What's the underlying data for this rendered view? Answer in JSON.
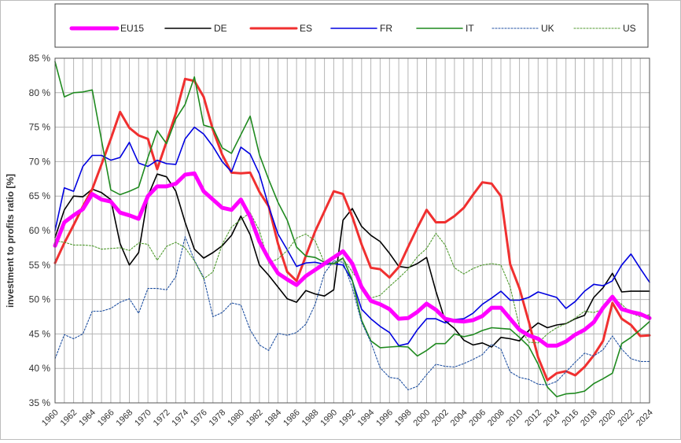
{
  "chart_data": {
    "type": "line",
    "title": "",
    "xlabel": "",
    "ylabel": "investment to profits ratio  [%]",
    "xlim": [
      1960,
      2024
    ],
    "ylim": [
      35,
      85
    ],
    "grid": true,
    "legend_position": "top",
    "x_ticks": [
      "1960",
      "1962",
      "1964",
      "1966",
      "1968",
      "1970",
      "1972",
      "1974",
      "1976",
      "1978",
      "1980",
      "1982",
      "1984",
      "1986",
      "1988",
      "1990",
      "1992",
      "1994",
      "1996",
      "1998",
      "2000",
      "2002",
      "2004",
      "2006",
      "2008",
      "2010",
      "2012",
      "2014",
      "2016",
      "2018",
      "2020",
      "2022",
      "2024"
    ],
    "y_ticks": [
      "35 %",
      "40 %",
      "45 %",
      "50 %",
      "55 %",
      "60 %",
      "65 %",
      "70 %",
      "75 %",
      "80 %",
      "85 %"
    ],
    "x": [
      1960,
      1961,
      1962,
      1963,
      1964,
      1965,
      1966,
      1967,
      1968,
      1969,
      1970,
      1971,
      1972,
      1973,
      1974,
      1975,
      1976,
      1977,
      1978,
      1979,
      1980,
      1981,
      1982,
      1983,
      1984,
      1985,
      1986,
      1987,
      1988,
      1989,
      1990,
      1991,
      1992,
      1993,
      1994,
      1995,
      1996,
      1997,
      1998,
      1999,
      2000,
      2001,
      2002,
      2003,
      2004,
      2005,
      2006,
      2007,
      2008,
      2009,
      2010,
      2011,
      2012,
      2013,
      2014,
      2015,
      2016,
      2017,
      2018,
      2019,
      2020,
      2021,
      2022,
      2023,
      2024
    ],
    "series": [
      {
        "name": "EU15",
        "color": "#ff00ff",
        "style": "solid",
        "width": 5,
        "values": [
          57.8,
          61.2,
          62.2,
          63.1,
          65.3,
          64.5,
          64.2,
          62.6,
          62.2,
          61.7,
          65.0,
          66.4,
          66.4,
          66.8,
          68.1,
          68.3,
          65.7,
          64.5,
          63.3,
          63.0,
          64.5,
          62.0,
          58.4,
          55.9,
          53.8,
          52.9,
          52.1,
          53.4,
          54.3,
          55.2,
          56.1,
          57.0,
          55.2,
          51.8,
          49.8,
          49.3,
          48.6,
          47.2,
          47.3,
          48.2,
          49.4,
          48.5,
          47.2,
          46.9,
          46.8,
          47.0,
          47.6,
          48.8,
          48.8,
          47.2,
          45.6,
          44.8,
          44.3,
          43.3,
          43.3,
          43.9,
          44.9,
          45.6,
          46.7,
          48.8,
          50.4,
          48.6,
          48.2,
          47.9,
          47.3
        ]
      },
      {
        "name": "DE",
        "color": "#000000",
        "style": "solid",
        "width": 1.6,
        "values": [
          59.0,
          63.0,
          65.0,
          64.9,
          66.0,
          65.5,
          64.5,
          58.1,
          55.0,
          56.8,
          65.0,
          68.2,
          67.8,
          65.7,
          61.2,
          57.3,
          56.0,
          56.8,
          57.8,
          59.3,
          62.1,
          59.4,
          55.0,
          53.5,
          51.8,
          50.1,
          49.6,
          51.3,
          50.8,
          50.5,
          51.4,
          61.5,
          63.2,
          60.6,
          59.3,
          58.4,
          56.7,
          54.8,
          54.6,
          55.2,
          56.1,
          51.2,
          46.9,
          45.8,
          44.1,
          43.4,
          43.7,
          43.1,
          44.5,
          44.3,
          44.0,
          45.5,
          46.6,
          45.9,
          46.3,
          46.5,
          47.2,
          47.7,
          50.3,
          51.7,
          53.8,
          51.1,
          51.2,
          51.2,
          51.2
        ]
      },
      {
        "name": "ES",
        "color": "#f03030",
        "style": "solid",
        "width": 3,
        "values": [
          55.3,
          58.2,
          60.8,
          63.5,
          66.0,
          69.6,
          73.3,
          77.2,
          74.9,
          73.8,
          73.3,
          68.9,
          72.9,
          77.0,
          82.0,
          81.7,
          79.4,
          74.6,
          71.0,
          68.4,
          68.3,
          68.4,
          65.6,
          63.5,
          58.1,
          54.0,
          52.7,
          56.3,
          59.9,
          62.8,
          65.7,
          65.3,
          62.0,
          58.0,
          54.6,
          54.4,
          53.2,
          54.7,
          57.6,
          60.4,
          63.0,
          61.2,
          61.2,
          62.1,
          63.3,
          65.2,
          67.0,
          66.8,
          65.0,
          55.1,
          51.6,
          46.8,
          41.6,
          38.3,
          39.3,
          39.6,
          39.0,
          40.2,
          41.9,
          44.0,
          49.5,
          47.2,
          46.3,
          44.7,
          44.8
        ]
      },
      {
        "name": "FR",
        "color": "#0000e0",
        "style": "solid",
        "width": 1.6,
        "values": [
          60.0,
          66.2,
          65.7,
          69.3,
          70.9,
          70.9,
          70.2,
          70.6,
          72.8,
          69.8,
          69.3,
          70.2,
          69.7,
          69.6,
          73.3,
          75.0,
          74.0,
          72.2,
          70.0,
          68.5,
          72.1,
          71.1,
          68.2,
          63.5,
          59.5,
          57.2,
          54.8,
          55.3,
          55.4,
          55.1,
          55.2,
          55.0,
          52.7,
          48.6,
          47.2,
          46.1,
          45.2,
          43.3,
          43.6,
          45.6,
          47.2,
          47.2,
          46.6,
          47.1,
          47.2,
          48.0,
          49.3,
          50.2,
          51.2,
          49.9,
          49.9,
          50.3,
          51.1,
          50.7,
          50.3,
          48.7,
          49.7,
          51.2,
          52.2,
          52.0,
          52.7,
          55.0,
          56.6,
          54.5,
          52.5
        ]
      },
      {
        "name": "IT",
        "color": "#1f8a1f",
        "style": "solid",
        "width": 1.6,
        "values": [
          84.5,
          79.4,
          80.0,
          80.1,
          80.4,
          73.1,
          65.9,
          65.2,
          65.7,
          66.3,
          70.6,
          74.5,
          72.6,
          76.2,
          78.3,
          82.3,
          75.3,
          74.9,
          72.0,
          71.2,
          73.9,
          76.6,
          71.0,
          67.4,
          64.1,
          61.5,
          57.6,
          56.3,
          56.1,
          55.4,
          55.2,
          56.0,
          52.8,
          47.0,
          44.0,
          43.0,
          43.1,
          43.2,
          43.1,
          41.8,
          42.6,
          43.6,
          43.6,
          45.0,
          44.6,
          44.9,
          45.5,
          45.9,
          45.8,
          45.7,
          44.5,
          43.2,
          40.6,
          37.3,
          35.9,
          36.3,
          36.4,
          36.7,
          37.8,
          38.5,
          39.3,
          43.6,
          44.5,
          45.6,
          46.8
        ]
      },
      {
        "name": "UK",
        "color": "#1e4fa0",
        "style": "dotted",
        "width": 1.1,
        "values": [
          41.4,
          44.9,
          44.3,
          45.0,
          48.3,
          48.3,
          48.7,
          49.6,
          50.1,
          48.0,
          51.6,
          51.6,
          51.4,
          53.3,
          59.1,
          55.7,
          53.2,
          47.5,
          48.1,
          49.5,
          49.2,
          45.6,
          43.4,
          42.6,
          45.1,
          44.8,
          45.2,
          46.4,
          49.3,
          53.8,
          55.6,
          55.4,
          51.7,
          46.7,
          43.8,
          40.1,
          38.7,
          38.5,
          36.9,
          37.4,
          39.1,
          40.6,
          40.3,
          40.2,
          40.7,
          41.3,
          42.0,
          43.5,
          42.8,
          39.5,
          38.7,
          38.4,
          37.7,
          37.6,
          38.1,
          39.5,
          40.9,
          42.2,
          41.8,
          42.7,
          44.7,
          42.8,
          41.4,
          41.0,
          41.0
        ]
      },
      {
        "name": "US",
        "color": "#4f9a2e",
        "style": "dotted",
        "width": 1.1,
        "values": [
          58.5,
          58.3,
          57.9,
          57.9,
          57.8,
          57.3,
          57.4,
          57.5,
          57.1,
          58.2,
          58.0,
          55.7,
          57.7,
          58.3,
          57.5,
          55.6,
          53.0,
          54.0,
          58.0,
          60.5,
          61.6,
          62.6,
          60.0,
          55.3,
          55.9,
          57.1,
          58.9,
          59.5,
          58.5,
          55.3,
          55.1,
          55.9,
          54.0,
          52.2,
          50.2,
          50.6,
          51.9,
          53.1,
          54.4,
          56.2,
          57.4,
          59.6,
          57.9,
          54.6,
          53.7,
          54.5,
          55.0,
          55.2,
          55.0,
          51.8,
          46.0,
          43.8,
          43.7,
          45.0,
          45.9,
          46.5,
          47.3,
          48.3,
          48.1,
          48.6,
          50.2,
          49.3,
          48.0,
          47.5,
          47.8
        ]
      }
    ]
  }
}
